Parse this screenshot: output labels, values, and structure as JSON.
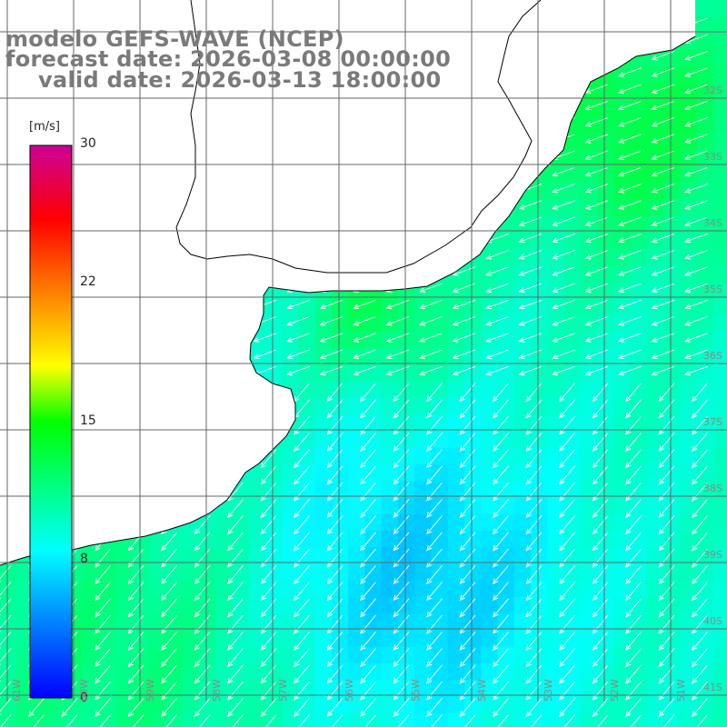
{
  "title": {
    "line1": "modelo GEFS-WAVE (NCEP)",
    "line2": "forecast date: 2026-03-08 00:00:00",
    "line3": "valid date: 2026-03-13 18:00:00"
  },
  "colorbar": {
    "unit": "[m/s]",
    "ticks": [
      "30",
      "22",
      "15",
      "8",
      "0"
    ],
    "min": 0,
    "max": 30,
    "stops": [
      {
        "value": 0,
        "color": "#0000ff"
      },
      {
        "value": 8,
        "color": "#00ffff"
      },
      {
        "value": 15,
        "color": "#00ff00"
      },
      {
        "value": 18,
        "color": "#ffff00"
      },
      {
        "value": 22,
        "color": "#ff8000"
      },
      {
        "value": 26,
        "color": "#ff0000"
      },
      {
        "value": 30,
        "color": "#cc0099"
      }
    ]
  },
  "lat_labels": [
    "32S",
    "33S",
    "34S",
    "35S",
    "36S",
    "37S",
    "38S",
    "39S",
    "40S",
    "41S"
  ],
  "lon_labels": [
    "61W",
    "60W",
    "59W",
    "58W",
    "57W",
    "56W",
    "55W",
    "54W",
    "53W",
    "52W",
    "51W"
  ],
  "colors": {
    "land": "#ffffff",
    "coast": "#000000",
    "grid": "#666666",
    "arrow": "#ffffff",
    "label": "#7a7a7a"
  },
  "field_summary": {
    "typical_speed_range_ms": [
      6,
      13
    ],
    "wind_direction": "from northeast"
  }
}
